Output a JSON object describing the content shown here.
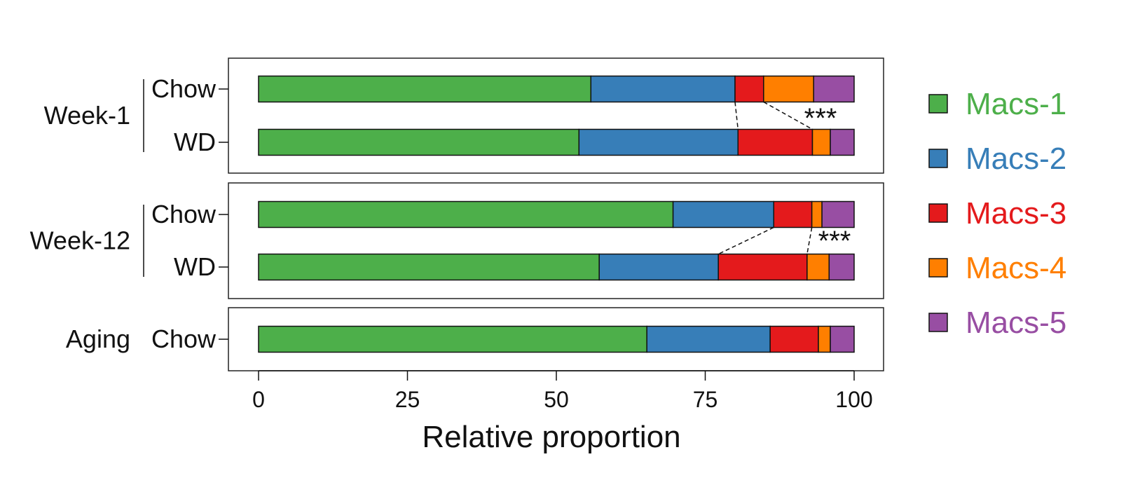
{
  "chart_data": {
    "type": "bar",
    "orientation": "horizontal",
    "stacked": true,
    "xlabel": "Relative proportion",
    "xlim": [
      0,
      100
    ],
    "xticks": [
      0,
      25,
      50,
      75,
      100
    ],
    "legend_position": "right",
    "series": [
      {
        "name": "Macs-1",
        "color": "#4daf4a"
      },
      {
        "name": "Macs-2",
        "color": "#377eb8"
      },
      {
        "name": "Macs-3",
        "color": "#e41a1c"
      },
      {
        "name": "Macs-4",
        "color": "#ff7f00"
      },
      {
        "name": "Macs-5",
        "color": "#984ea3"
      }
    ],
    "groups": [
      {
        "name": "Week-1",
        "rows": [
          {
            "label": "Chow",
            "values": [
              55.8,
              24.2,
              4.8,
              8.4,
              6.8
            ]
          },
          {
            "label": "WD",
            "values": [
              53.8,
              26.7,
              12.5,
              3.0,
              4.0
            ]
          }
        ],
        "annotation": "***"
      },
      {
        "name": "Week-12",
        "rows": [
          {
            "label": "Chow",
            "values": [
              69.6,
              16.9,
              6.4,
              1.7,
              5.4
            ]
          },
          {
            "label": "WD",
            "values": [
              57.2,
              20.0,
              14.9,
              3.7,
              4.2
            ]
          }
        ],
        "annotation": "***"
      },
      {
        "name": "Aging",
        "rows": [
          {
            "label": "Chow",
            "values": [
              65.2,
              20.7,
              8.1,
              2.0,
              4.0
            ]
          }
        ],
        "annotation": ""
      }
    ]
  }
}
